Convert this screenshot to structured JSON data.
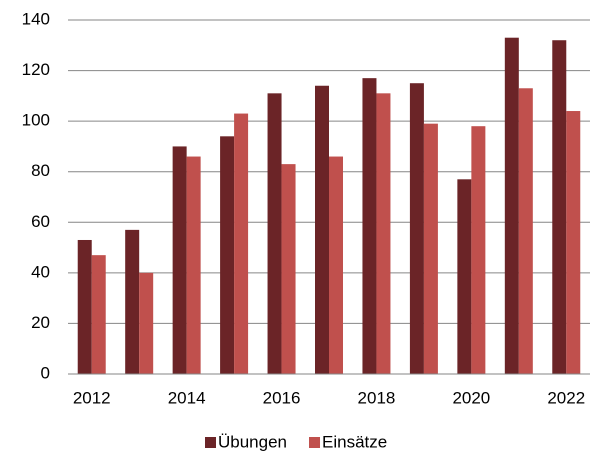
{
  "chart_data": {
    "type": "bar",
    "categories": [
      "2012",
      null,
      "2014",
      null,
      "2016",
      null,
      "2018",
      null,
      "2020",
      null,
      "2022"
    ],
    "series": [
      {
        "name": "Übungen",
        "color": "#6b2427",
        "values": [
          53,
          57,
          90,
          94,
          111,
          114,
          117,
          115,
          77,
          133,
          132
        ]
      },
      {
        "name": "Einsätze",
        "color": "#c0504d",
        "values": [
          47,
          40,
          86,
          103,
          83,
          86,
          111,
          99,
          98,
          113,
          104
        ]
      }
    ],
    "ylim": [
      0,
      140
    ],
    "yticks": [
      0,
      20,
      40,
      60,
      80,
      100,
      120,
      140
    ],
    "grid": true,
    "legend": "bottom"
  }
}
